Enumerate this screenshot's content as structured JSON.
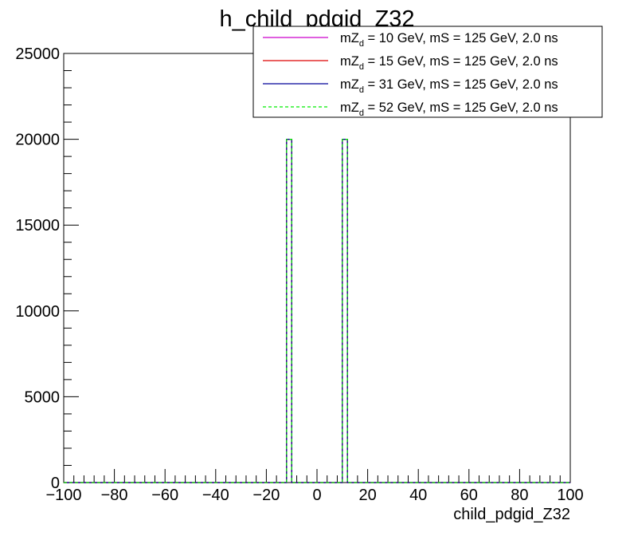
{
  "chart_data": {
    "type": "histogram-step",
    "title": "h_child_pdgid_Z32",
    "xlabel": "child_pdgid_Z32",
    "ylabel": "",
    "xlim": [
      -100,
      100
    ],
    "ylim": [
      0,
      25000
    ],
    "x_ticks": [
      -100,
      -80,
      -60,
      -40,
      -20,
      0,
      20,
      40,
      60,
      80,
      100
    ],
    "x_tick_labels": [
      "−100",
      "−80",
      "−60",
      "−40",
      "−20",
      "0",
      "20",
      "40",
      "60",
      "80",
      "100"
    ],
    "y_ticks": [
      0,
      5000,
      10000,
      15000,
      20000,
      25000
    ],
    "y_tick_labels": [
      "0",
      "5000",
      "10000",
      "15000",
      "20000",
      "25000"
    ],
    "bin_width": 2,
    "series": [
      {
        "name": "mZ_d = 10 GeV, mS = 125 GeV, 2.0 ns",
        "legend_main": "mZ",
        "legend_sub": "d",
        "legend_rest": " = 10 GeV, mS = 125 GeV, 2.0 ns",
        "color": "#cc00cc",
        "dash": "none",
        "bins": [
          {
            "x": [
              -12,
              -10
            ],
            "y": 20000
          },
          {
            "x": [
              10,
              12
            ],
            "y": 20000
          }
        ]
      },
      {
        "name": "mZ_d = 15 GeV, mS = 125 GeV, 2.0 ns",
        "legend_main": "mZ",
        "legend_sub": "d",
        "legend_rest": " = 15 GeV, mS = 125 GeV, 2.0 ns",
        "color": "#dd0000",
        "dash": "none",
        "bins": [
          {
            "x": [
              -12,
              -10
            ],
            "y": 20000
          },
          {
            "x": [
              10,
              12
            ],
            "y": 20000
          }
        ]
      },
      {
        "name": "mZ_d = 31 GeV, mS = 125 GeV, 2.0 ns",
        "legend_main": "mZ",
        "legend_sub": "d",
        "legend_rest": " = 31 GeV, mS = 125 GeV, 2.0 ns",
        "color": "#000099",
        "dash": "none",
        "bins": [
          {
            "x": [
              -12,
              -10
            ],
            "y": 20000
          },
          {
            "x": [
              10,
              12
            ],
            "y": 20000
          }
        ]
      },
      {
        "name": "mZ_d = 52 GeV, mS = 125 GeV, 2.0 ns",
        "legend_main": "mZ",
        "legend_sub": "d",
        "legend_rest": " = 52 GeV, mS = 125 GeV, 2.0 ns",
        "color": "#00ee00",
        "dash": "4,3",
        "bins": [
          {
            "x": [
              -12,
              -10
            ],
            "y": 20000
          },
          {
            "x": [
              10,
              12
            ],
            "y": 20000
          }
        ]
      }
    ],
    "legend_placement": "top-right",
    "grid": false
  }
}
